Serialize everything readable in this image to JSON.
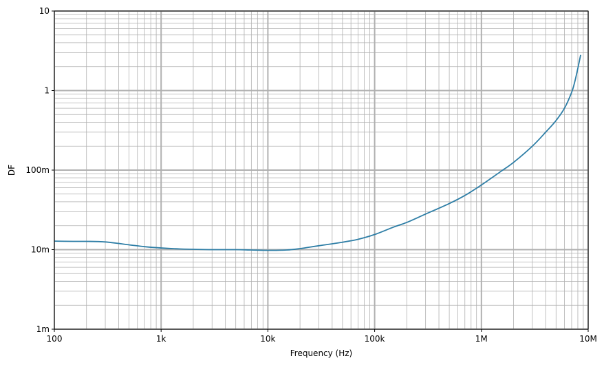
{
  "chart_data": {
    "type": "line",
    "xlabel": "Frequency (Hz)",
    "ylabel": "DF",
    "xscale": "log",
    "yscale": "log",
    "xlim": [
      100,
      10000000
    ],
    "ylim": [
      0.001,
      10
    ],
    "grid": true,
    "x_ticks": [
      {
        "value": 100,
        "label": "100"
      },
      {
        "value": 1000,
        "label": "1k"
      },
      {
        "value": 10000,
        "label": "10k"
      },
      {
        "value": 100000,
        "label": "100k"
      },
      {
        "value": 1000000,
        "label": "1M"
      },
      {
        "value": 10000000,
        "label": "10M"
      }
    ],
    "y_ticks": [
      {
        "value": 0.001,
        "label": "1m"
      },
      {
        "value": 0.01,
        "label": "10m"
      },
      {
        "value": 0.1,
        "label": "100m"
      },
      {
        "value": 1,
        "label": "1"
      },
      {
        "value": 10,
        "label": "10"
      }
    ],
    "series": [
      {
        "color": "#2e7ea6",
        "x": [
          100,
          150,
          200,
          300,
          500,
          700,
          1000,
          1500,
          2000,
          3000,
          5000,
          7000,
          10000,
          15000,
          20000,
          30000,
          50000,
          70000,
          100000,
          150000,
          200000,
          300000,
          500000,
          700000,
          1000000,
          1500000,
          2000000,
          3000000,
          4000000,
          5000000,
          6000000,
          7000000,
          7500000,
          8000000,
          8500000
        ],
        "y": [
          0.0128,
          0.0127,
          0.0127,
          0.0125,
          0.0115,
          0.0109,
          0.0105,
          0.0102,
          0.0101,
          0.01,
          0.01,
          0.0099,
          0.0098,
          0.0099,
          0.0103,
          0.0112,
          0.0124,
          0.0135,
          0.0155,
          0.0192,
          0.022,
          0.028,
          0.038,
          0.048,
          0.065,
          0.095,
          0.125,
          0.2,
          0.3,
          0.42,
          0.6,
          0.95,
          1.3,
          1.9,
          2.8
        ]
      }
    ]
  }
}
